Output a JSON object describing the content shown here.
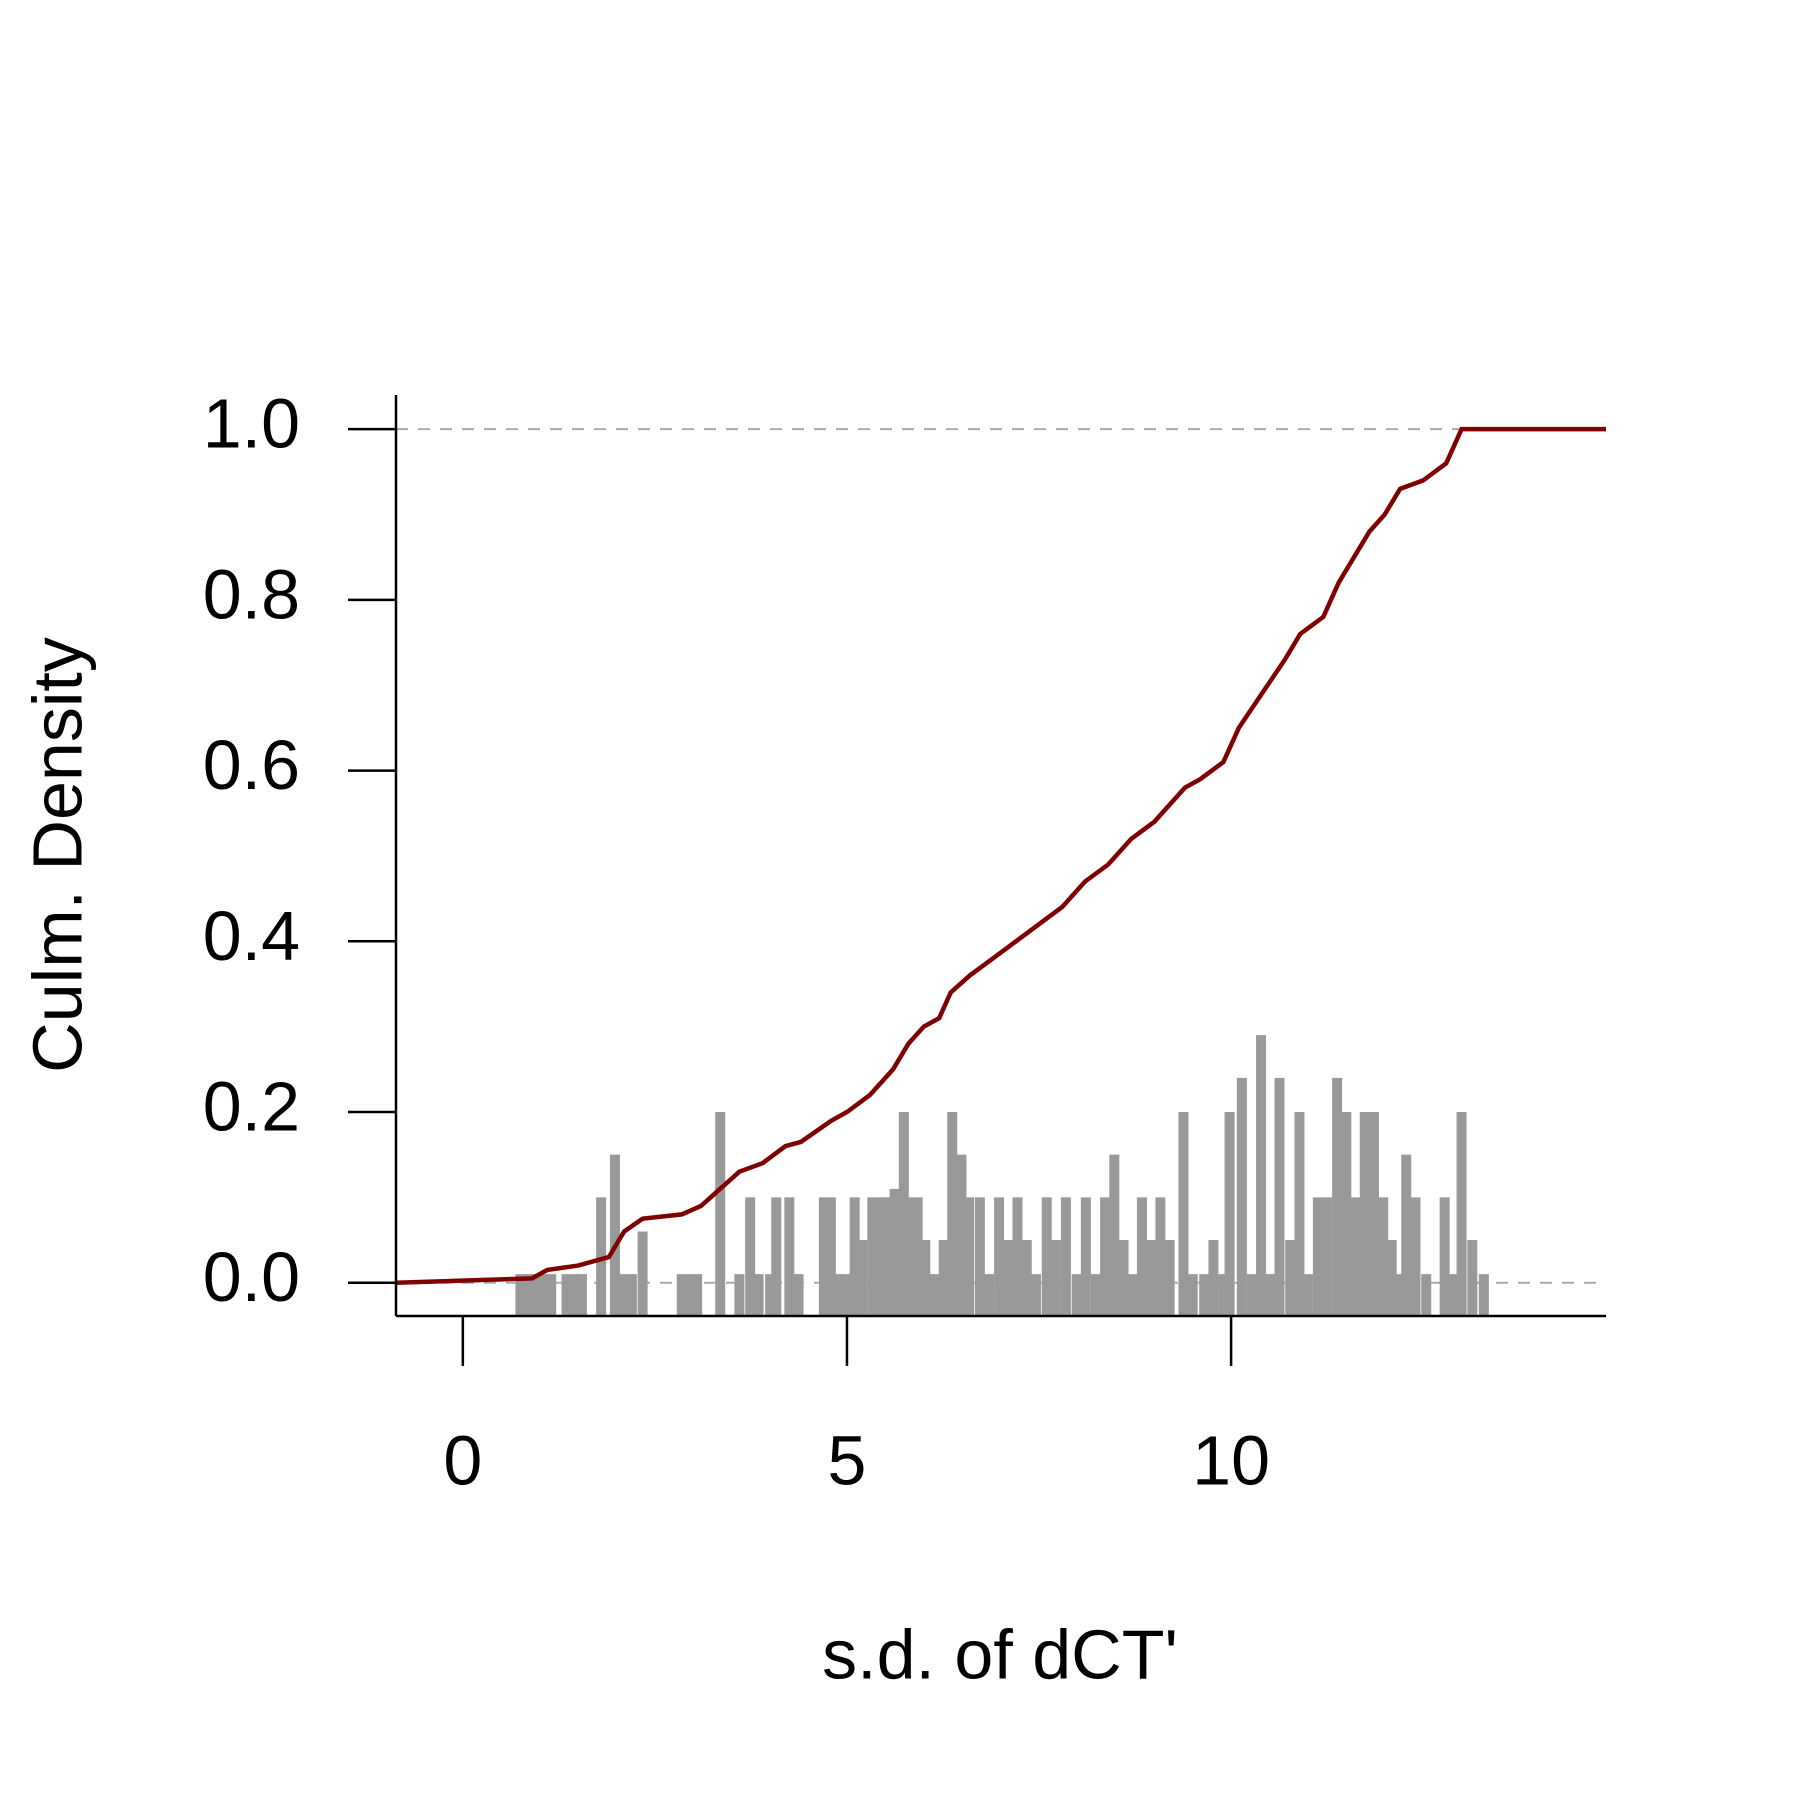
{
  "chart_data": {
    "type": "ecdf",
    "x_label": "s.d. of dCT'",
    "y_label": "Culm. Density",
    "xlim": [
      -0.87,
      14.88
    ],
    "ylim": [
      -0.039,
      1.04
    ],
    "xticks": [
      0,
      5,
      10
    ],
    "yticks": [
      {
        "value": 0,
        "label": "0.0"
      },
      {
        "value": 0.2,
        "label": "0.2"
      },
      {
        "value": 0.4,
        "label": "0.4"
      },
      {
        "value": 0.6,
        "label": "0.6"
      },
      {
        "value": 0.8,
        "label": "0.8"
      },
      {
        "value": 1,
        "label": "1.0"
      }
    ],
    "reference_lines": {
      "color": "#aaaaaa",
      "values": [
        0,
        1
      ]
    },
    "spikes": {
      "color": "#999999",
      "x": [
        0.75,
        0.85,
        0.95,
        1.05,
        1.15,
        1.35,
        1.45,
        1.55,
        1.8,
        1.98,
        2.1,
        2.2,
        2.34,
        2.85,
        2.95,
        3.05,
        3.35,
        3.6,
        3.74,
        3.85,
        4.0,
        4.08,
        4.25,
        4.37,
        4.7,
        4.79,
        4.9,
        4.98,
        5.1,
        5.2,
        5.33,
        5.42,
        5.5,
        5.62,
        5.74,
        5.83,
        5.92,
        6.02,
        6.14,
        6.26,
        6.37,
        6.49,
        6.59,
        6.73,
        6.85,
        6.98,
        7.09,
        7.22,
        7.34,
        7.46,
        7.6,
        7.72,
        7.85,
        7.99,
        8.11,
        8.24,
        8.36,
        8.48,
        8.6,
        8.72,
        8.84,
        8.96,
        9.08,
        9.2,
        9.38,
        9.5,
        9.65,
        9.77,
        9.9,
        9.98,
        10.14,
        10.27,
        10.39,
        10.5,
        10.63,
        10.77,
        10.89,
        11.0,
        11.13,
        11.25,
        11.38,
        11.5,
        11.62,
        11.74,
        11.86,
        11.98,
        12.09,
        12.19,
        12.28,
        12.4,
        12.54,
        12.78,
        12.88,
        13.0,
        13.14,
        13.29
      ],
      "values": [
        0.01,
        0.01,
        0.01,
        0.01,
        0.01,
        0.01,
        0.01,
        0.01,
        0.1,
        0.15,
        0.01,
        0.01,
        0.06,
        0.01,
        0.01,
        0.01,
        0.2,
        0.01,
        0.1,
        0.01,
        0.01,
        0.1,
        0.1,
        0.01,
        0.1,
        0.1,
        0.01,
        0.01,
        0.1,
        0.05,
        0.1,
        0.1,
        0.1,
        0.11,
        0.2,
        0.1,
        0.1,
        0.05,
        0.01,
        0.05,
        0.2,
        0.15,
        0.1,
        0.1,
        0.01,
        0.1,
        0.05,
        0.1,
        0.05,
        0.01,
        0.1,
        0.05,
        0.1,
        0.01,
        0.1,
        0.01,
        0.1,
        0.15,
        0.05,
        0.01,
        0.1,
        0.05,
        0.1,
        0.05,
        0.2,
        0.01,
        0.01,
        0.05,
        0.01,
        0.2,
        0.24,
        0.01,
        0.29,
        0.01,
        0.24,
        0.05,
        0.2,
        0.01,
        0.1,
        0.1,
        0.24,
        0.2,
        0.1,
        0.2,
        0.2,
        0.1,
        0.05,
        0.01,
        0.15,
        0.1,
        0.01,
        0.1,
        0.01,
        0.2,
        0.05,
        0.01
      ]
    },
    "ecdf": {
      "color": "#800000",
      "x": [
        -0.87,
        0.9,
        1.1,
        1.5,
        1.9,
        2.1,
        2.34,
        2.85,
        3.1,
        3.35,
        3.6,
        3.9,
        4.2,
        4.4,
        4.8,
        5.0,
        5.3,
        5.6,
        5.8,
        6.0,
        6.2,
        6.35,
        6.6,
        6.9,
        7.2,
        7.5,
        7.8,
        8.1,
        8.4,
        8.7,
        9.0,
        9.2,
        9.4,
        9.6,
        9.9,
        10.1,
        10.4,
        10.7,
        10.9,
        11.2,
        11.4,
        11.6,
        11.8,
        12.0,
        12.2,
        12.5,
        12.8,
        13.0,
        14.88
      ],
      "values": [
        0,
        0.005,
        0.015,
        0.02,
        0.03,
        0.06,
        0.075,
        0.08,
        0.09,
        0.11,
        0.13,
        0.14,
        0.16,
        0.165,
        0.19,
        0.2,
        0.22,
        0.25,
        0.28,
        0.3,
        0.31,
        0.34,
        0.36,
        0.38,
        0.4,
        0.42,
        0.44,
        0.47,
        0.49,
        0.52,
        0.54,
        0.56,
        0.58,
        0.59,
        0.61,
        0.65,
        0.69,
        0.73,
        0.76,
        0.78,
        0.82,
        0.85,
        0.88,
        0.9,
        0.93,
        0.94,
        0.96,
        1.0,
        1.0
      ]
    }
  }
}
